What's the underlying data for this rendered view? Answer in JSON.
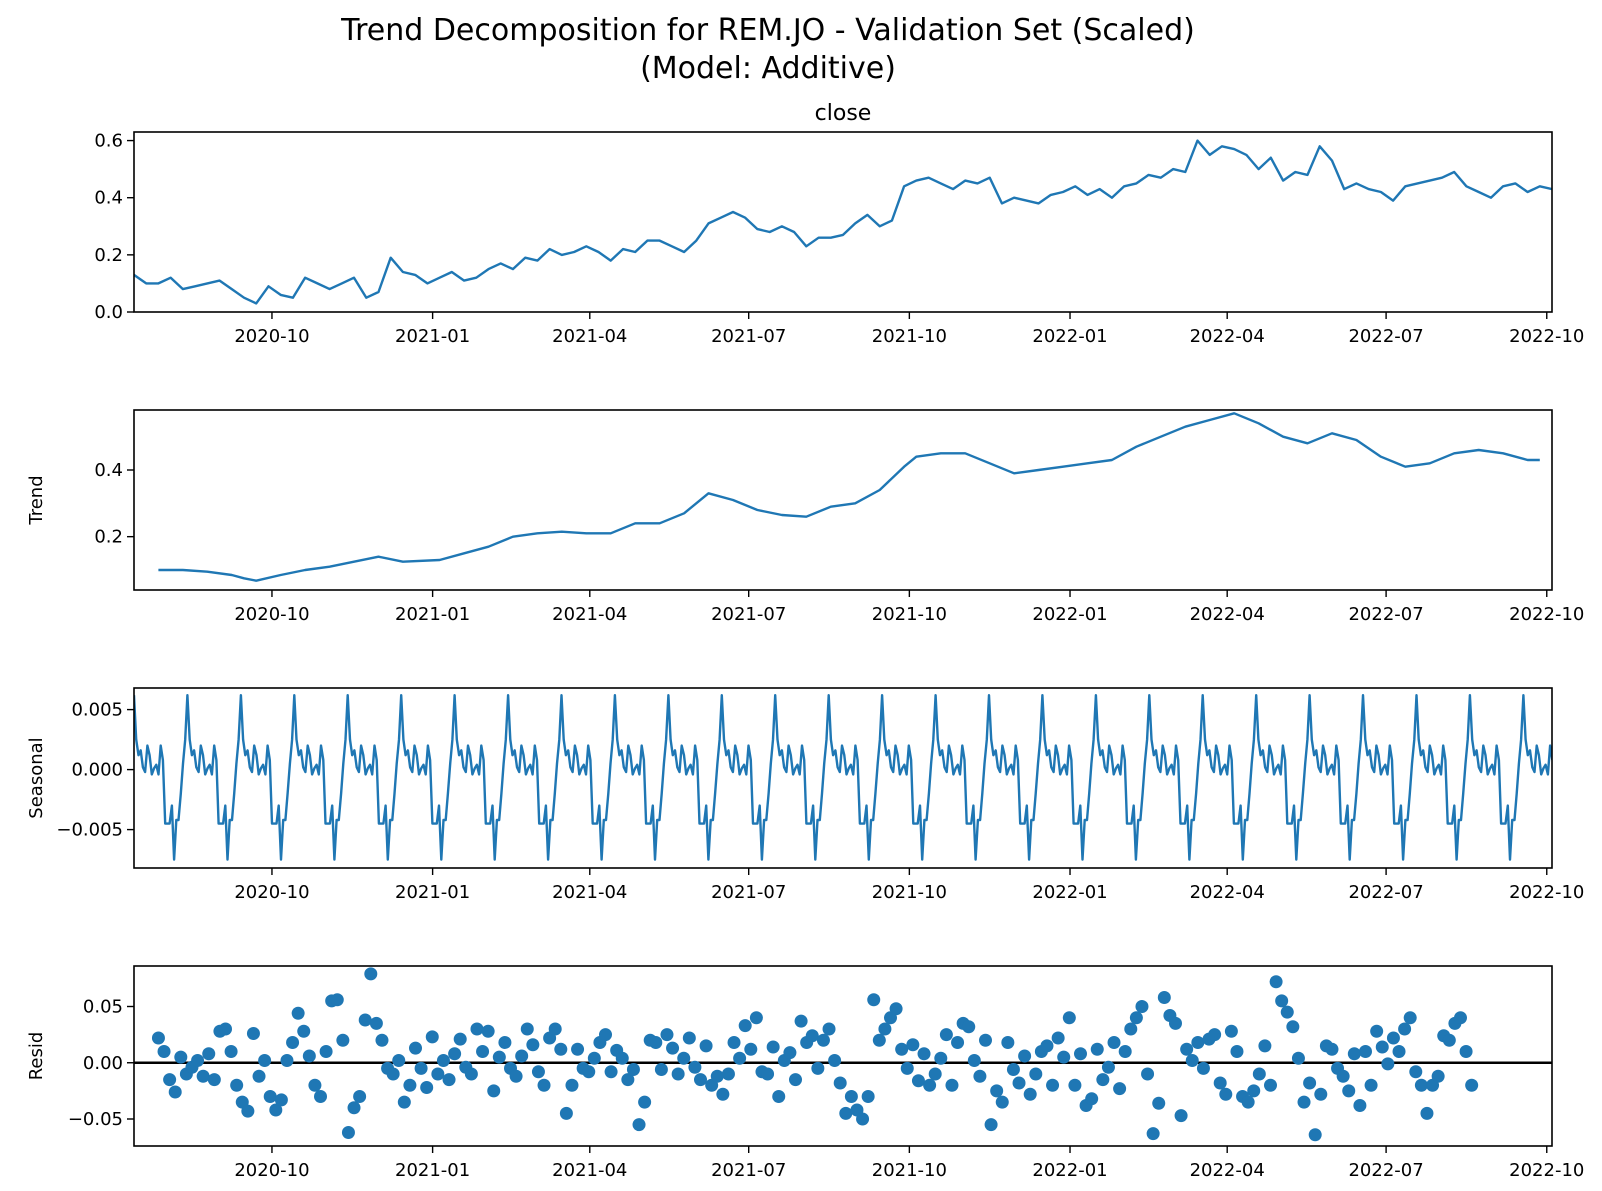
{
  "figure": {
    "title_line1": "Trend Decomposition for REM.JO - Validation Set (Scaled)",
    "title_line2": "(Model: Additive)"
  },
  "chart_data": [
    {
      "type": "line",
      "title": "close",
      "ylabel": "",
      "color": "#1f77b4",
      "xlim": [
        "2020-07-14",
        "2022-10-04"
      ],
      "ylim": [
        0.0,
        0.63
      ],
      "yticks": [
        "0.0",
        "0.2",
        "0.4",
        "0.6"
      ],
      "xticks": [
        "2020-10",
        "2021-01",
        "2021-04",
        "2021-07",
        "2021-10",
        "2022-01",
        "2022-04",
        "2022-07",
        "2022-10"
      ],
      "series": [
        {
          "x": [
            "2020-07-14",
            "2020-07-21",
            "2020-07-28",
            "2020-08-04",
            "2020-08-11",
            "2020-08-18",
            "2020-08-25",
            "2020-09-01",
            "2020-09-08",
            "2020-09-15",
            "2020-09-22",
            "2020-09-29",
            "2020-10-06",
            "2020-10-13",
            "2020-10-20",
            "2020-10-27",
            "2020-11-03",
            "2020-11-10",
            "2020-11-17",
            "2020-11-24",
            "2020-12-01",
            "2020-12-08",
            "2020-12-15",
            "2020-12-22",
            "2020-12-29",
            "2021-01-05",
            "2021-01-12",
            "2021-01-19",
            "2021-01-26",
            "2021-02-02",
            "2021-02-09",
            "2021-02-16",
            "2021-02-23",
            "2021-03-02",
            "2021-03-09",
            "2021-03-16",
            "2021-03-23",
            "2021-03-30",
            "2021-04-06",
            "2021-04-13",
            "2021-04-20",
            "2021-04-27",
            "2021-05-04",
            "2021-05-11",
            "2021-05-18",
            "2021-05-25",
            "2021-06-01",
            "2021-06-08",
            "2021-06-15",
            "2021-06-22",
            "2021-06-29",
            "2021-07-06",
            "2021-07-13",
            "2021-07-20",
            "2021-07-27",
            "2021-08-03",
            "2021-08-10",
            "2021-08-17",
            "2021-08-24",
            "2021-08-31",
            "2021-09-07",
            "2021-09-14",
            "2021-09-21",
            "2021-09-28",
            "2021-10-05",
            "2021-10-12",
            "2021-10-19",
            "2021-10-26",
            "2021-11-02",
            "2021-11-09",
            "2021-11-16",
            "2021-11-23",
            "2021-11-30",
            "2021-12-07",
            "2021-12-14",
            "2021-12-21",
            "2021-12-28",
            "2022-01-04",
            "2022-01-11",
            "2022-01-18",
            "2022-01-25",
            "2022-02-01",
            "2022-02-08",
            "2022-02-15",
            "2022-02-22",
            "2022-03-01",
            "2022-03-08",
            "2022-03-15",
            "2022-03-22",
            "2022-03-29",
            "2022-04-05",
            "2022-04-12",
            "2022-04-19",
            "2022-04-26",
            "2022-05-03",
            "2022-05-10",
            "2022-05-17",
            "2022-05-24",
            "2022-05-31",
            "2022-06-07",
            "2022-06-14",
            "2022-06-21",
            "2022-06-28",
            "2022-07-05",
            "2022-07-12",
            "2022-07-19",
            "2022-07-26",
            "2022-08-02",
            "2022-08-09",
            "2022-08-16",
            "2022-08-23",
            "2022-08-30",
            "2022-09-06",
            "2022-09-13",
            "2022-09-20",
            "2022-09-27",
            "2022-10-04"
          ],
          "y": [
            0.13,
            0.1,
            0.1,
            0.12,
            0.08,
            0.09,
            0.1,
            0.11,
            0.08,
            0.05,
            0.03,
            0.09,
            0.06,
            0.05,
            0.12,
            0.1,
            0.08,
            0.1,
            0.12,
            0.05,
            0.07,
            0.19,
            0.14,
            0.13,
            0.1,
            0.12,
            0.14,
            0.11,
            0.12,
            0.15,
            0.17,
            0.15,
            0.19,
            0.18,
            0.22,
            0.2,
            0.21,
            0.23,
            0.21,
            0.18,
            0.22,
            0.21,
            0.25,
            0.25,
            0.23,
            0.21,
            0.25,
            0.31,
            0.33,
            0.35,
            0.33,
            0.29,
            0.28,
            0.3,
            0.28,
            0.23,
            0.26,
            0.26,
            0.27,
            0.31,
            0.34,
            0.3,
            0.32,
            0.44,
            0.46,
            0.47,
            0.45,
            0.43,
            0.46,
            0.45,
            0.47,
            0.38,
            0.4,
            0.39,
            0.38,
            0.41,
            0.42,
            0.44,
            0.41,
            0.43,
            0.4,
            0.44,
            0.45,
            0.48,
            0.47,
            0.5,
            0.49,
            0.6,
            0.55,
            0.58,
            0.57,
            0.55,
            0.5,
            0.54,
            0.46,
            0.49,
            0.48,
            0.58,
            0.53,
            0.43,
            0.45,
            0.43,
            0.42,
            0.39,
            0.44,
            0.45,
            0.46,
            0.47,
            0.49,
            0.44,
            0.42,
            0.4,
            0.44,
            0.45,
            0.42,
            0.44,
            0.43
          ]
        }
      ]
    },
    {
      "type": "line",
      "title": "",
      "ylabel": "Trend",
      "color": "#1f77b4",
      "xlim": [
        "2020-07-14",
        "2022-10-04"
      ],
      "ylim": [
        0.04,
        0.58
      ],
      "yticks": [
        "0.2",
        "0.4"
      ],
      "xticks": [
        "2020-10",
        "2021-01",
        "2021-04",
        "2021-07",
        "2021-10",
        "2022-01",
        "2022-04",
        "2022-07",
        "2022-10"
      ],
      "series": [
        {
          "x": [
            "2020-07-28",
            "2020-08-11",
            "2020-08-25",
            "2020-09-08",
            "2020-09-15",
            "2020-09-22",
            "2020-10-06",
            "2020-10-20",
            "2020-11-03",
            "2020-11-17",
            "2020-12-01",
            "2020-12-15",
            "2021-01-05",
            "2021-01-19",
            "2021-02-02",
            "2021-02-16",
            "2021-03-02",
            "2021-03-16",
            "2021-03-30",
            "2021-04-13",
            "2021-04-27",
            "2021-05-11",
            "2021-05-25",
            "2021-06-08",
            "2021-06-22",
            "2021-07-06",
            "2021-07-20",
            "2021-08-03",
            "2021-08-17",
            "2021-08-31",
            "2021-09-14",
            "2021-09-28",
            "2021-10-05",
            "2021-10-19",
            "2021-11-02",
            "2021-11-16",
            "2021-11-30",
            "2021-12-14",
            "2021-12-28",
            "2022-01-11",
            "2022-01-25",
            "2022-02-08",
            "2022-02-22",
            "2022-03-08",
            "2022-03-22",
            "2022-04-05",
            "2022-04-19",
            "2022-05-03",
            "2022-05-17",
            "2022-05-31",
            "2022-06-14",
            "2022-06-28",
            "2022-07-12",
            "2022-07-26",
            "2022-08-09",
            "2022-08-23",
            "2022-09-06",
            "2022-09-20",
            "2022-09-27"
          ],
          "y": [
            0.1,
            0.1,
            0.095,
            0.085,
            0.075,
            0.068,
            0.085,
            0.1,
            0.11,
            0.125,
            0.14,
            0.125,
            0.13,
            0.15,
            0.17,
            0.2,
            0.21,
            0.215,
            0.21,
            0.21,
            0.24,
            0.24,
            0.27,
            0.33,
            0.31,
            0.28,
            0.265,
            0.26,
            0.29,
            0.3,
            0.34,
            0.41,
            0.44,
            0.45,
            0.45,
            0.42,
            0.39,
            0.4,
            0.41,
            0.42,
            0.43,
            0.47,
            0.5,
            0.53,
            0.55,
            0.57,
            0.54,
            0.5,
            0.48,
            0.51,
            0.49,
            0.44,
            0.41,
            0.42,
            0.45,
            0.46,
            0.45,
            0.43,
            0.43
          ]
        }
      ]
    },
    {
      "type": "line",
      "title": "",
      "ylabel": "Seasonal",
      "color": "#1f77b4",
      "xlim": [
        "2020-07-14",
        "2022-10-04"
      ],
      "ylim": [
        -0.0082,
        0.0068
      ],
      "yticks": [
        "0.005",
        "0.000",
        "−0.005"
      ],
      "xticks": [
        "2020-10",
        "2021-01",
        "2021-04",
        "2021-07",
        "2021-10",
        "2022-01",
        "2022-04",
        "2022-07",
        "2022-10"
      ],
      "period_days": 30.6,
      "cycle": [
        -0.0075,
        -0.0042,
        -0.0042,
        -0.002,
        0.0005,
        0.0025,
        0.0062,
        0.0025,
        0.0012,
        0.0016,
        0.0002,
        -0.0002,
        0.002,
        0.0012,
        -0.0004,
        0.0001,
        0.0004,
        -0.0004,
        0.002,
        0.0008,
        -0.0045,
        -0.0045,
        -0.0045,
        -0.003
      ]
    },
    {
      "type": "scatter",
      "title": "",
      "ylabel": "Resid",
      "color": "#1f77b4",
      "xlim": [
        "2020-07-14",
        "2022-10-04"
      ],
      "ylim": [
        -0.074,
        0.086
      ],
      "yticks": [
        "0.05",
        "0.00",
        "−0.05"
      ],
      "xticks": [
        "2020-10",
        "2021-01",
        "2021-04",
        "2021-07",
        "2021-10",
        "2022-01",
        "2022-04",
        "2022-07",
        "2022-10"
      ],
      "zero_line": true,
      "series": [
        {
          "x_start": "2020-07-28",
          "x_step_days": 3.2,
          "y": [
            0.022,
            0.01,
            -0.015,
            -0.026,
            0.005,
            -0.01,
            -0.004,
            0.002,
            -0.012,
            0.008,
            -0.015,
            0.028,
            0.03,
            0.01,
            -0.02,
            -0.035,
            -0.043,
            0.026,
            -0.012,
            0.002,
            -0.03,
            -0.042,
            -0.033,
            0.002,
            0.018,
            0.044,
            0.028,
            0.006,
            -0.02,
            -0.03,
            0.01,
            0.055,
            0.056,
            0.02,
            -0.062,
            -0.04,
            -0.03,
            0.038,
            0.079,
            0.035,
            0.02,
            -0.005,
            -0.01,
            0.002,
            -0.035,
            -0.02,
            0.013,
            -0.005,
            -0.022,
            0.023,
            -0.01,
            0.002,
            -0.015,
            0.008,
            0.021,
            -0.004,
            -0.01,
            0.03,
            0.01,
            0.028,
            -0.025,
            0.005,
            0.018,
            -0.005,
            -0.012,
            0.006,
            0.03,
            0.016,
            -0.008,
            -0.02,
            0.022,
            0.03,
            0.012,
            -0.045,
            -0.02,
            0.012,
            -0.005,
            -0.008,
            0.004,
            0.018,
            0.025,
            -0.008,
            0.011,
            0.004,
            -0.015,
            -0.006,
            -0.055,
            -0.035,
            0.02,
            0.018,
            -0.006,
            0.025,
            0.013,
            -0.01,
            0.004,
            0.022,
            -0.004,
            -0.015,
            0.015,
            -0.02,
            -0.012,
            -0.028,
            -0.01,
            0.018,
            0.004,
            0.033,
            0.012,
            0.04,
            -0.008,
            -0.01,
            0.014,
            -0.03,
            0.002,
            0.009,
            -0.015,
            0.037,
            0.018,
            0.024,
            -0.005,
            0.02,
            0.03,
            0.002,
            -0.018,
            -0.045,
            -0.03,
            -0.042,
            -0.05,
            -0.03,
            0.056,
            0.02,
            0.03,
            0.04,
            0.048,
            0.012,
            -0.005,
            0.016,
            -0.016,
            0.008,
            -0.02,
            -0.01,
            0.004,
            0.025,
            -0.02,
            0.018,
            0.035,
            0.032,
            0.002,
            -0.012,
            0.02,
            -0.055,
            -0.025,
            -0.035,
            0.018,
            -0.006,
            -0.018,
            0.006,
            -0.028,
            -0.01,
            0.01,
            0.015,
            -0.02,
            0.022,
            0.005,
            0.04,
            -0.02,
            0.008,
            -0.038,
            -0.032,
            0.012,
            -0.015,
            -0.004,
            0.018,
            -0.023,
            0.01,
            0.03,
            0.04,
            0.05,
            -0.01,
            -0.063,
            -0.036,
            0.058,
            0.042,
            0.035,
            -0.047,
            0.012,
            0.002,
            0.018,
            -0.005,
            0.021,
            0.025,
            -0.018,
            -0.028,
            0.028,
            0.01,
            -0.03,
            -0.035,
            -0.025,
            -0.01,
            0.015,
            -0.02,
            0.072,
            0.055,
            0.045,
            0.032,
            0.004,
            -0.035,
            -0.018,
            -0.064,
            -0.028,
            0.015,
            0.012,
            -0.005,
            -0.012,
            -0.025,
            0.008,
            -0.038,
            0.01,
            -0.02,
            0.028,
            0.014,
            -0.001,
            0.022,
            0.01,
            0.03,
            0.04,
            -0.008,
            -0.02,
            -0.045,
            -0.02,
            -0.012,
            0.024,
            0.02,
            0.035,
            0.04,
            0.01,
            -0.02
          ]
        }
      ]
    }
  ]
}
